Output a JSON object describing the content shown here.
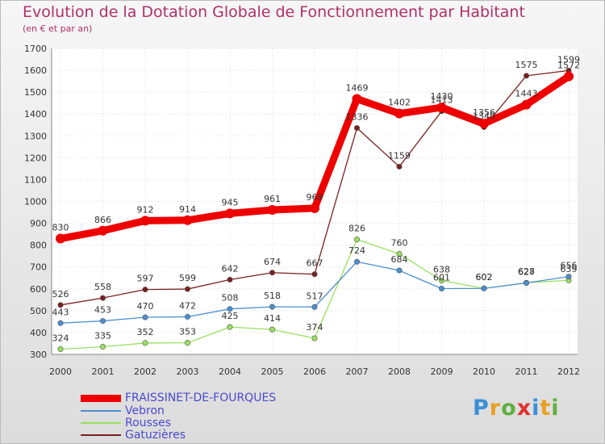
{
  "chart_data": {
    "type": "line",
    "title": "Evolution de la Dotation Globale de Fonctionnement par Habitant",
    "subtitle": "(en € et par an)",
    "xlabel": "",
    "ylabel": "",
    "ylim": [
      300,
      1700
    ],
    "yticks": [
      300,
      400,
      500,
      600,
      700,
      800,
      900,
      1000,
      1100,
      1200,
      1300,
      1400,
      1500,
      1600,
      1700
    ],
    "categories": [
      "2000",
      "2001",
      "2002",
      "2003",
      "2004",
      "2005",
      "2006",
      "2007",
      "2008",
      "2009",
      "2010",
      "2011",
      "2012"
    ],
    "series": [
      {
        "name": "FRAISSINET-DE-FOURQUES",
        "color": "#ee0000",
        "values": [
          830,
          866,
          912,
          914,
          945,
          961,
          969,
          1469,
          1402,
          1430,
          1356,
          1443,
          1572
        ]
      },
      {
        "name": "Vebron",
        "color": "#4a8fcf",
        "values": [
          443,
          453,
          470,
          472,
          508,
          518,
          517,
          724,
          684,
          601,
          602,
          627,
          656
        ]
      },
      {
        "name": "Rousses",
        "color": "#99e060",
        "values": [
          324,
          335,
          352,
          353,
          425,
          414,
          374,
          826,
          760,
          638,
          602,
          628,
          639
        ]
      },
      {
        "name": "Gatuzières",
        "color": "#7a2020",
        "values": [
          526,
          558,
          597,
          599,
          642,
          674,
          667,
          1336,
          1159,
          1413,
          1340,
          1575,
          1599
        ]
      }
    ]
  },
  "logo": {
    "letters": [
      "P",
      "r",
      "o",
      "x",
      "i",
      "t",
      "i"
    ],
    "colors": [
      "#3a90d8",
      "#e8a020",
      "#60b040",
      "#e03030",
      "#3a90d8",
      "#e8a020",
      "#60b040"
    ]
  }
}
